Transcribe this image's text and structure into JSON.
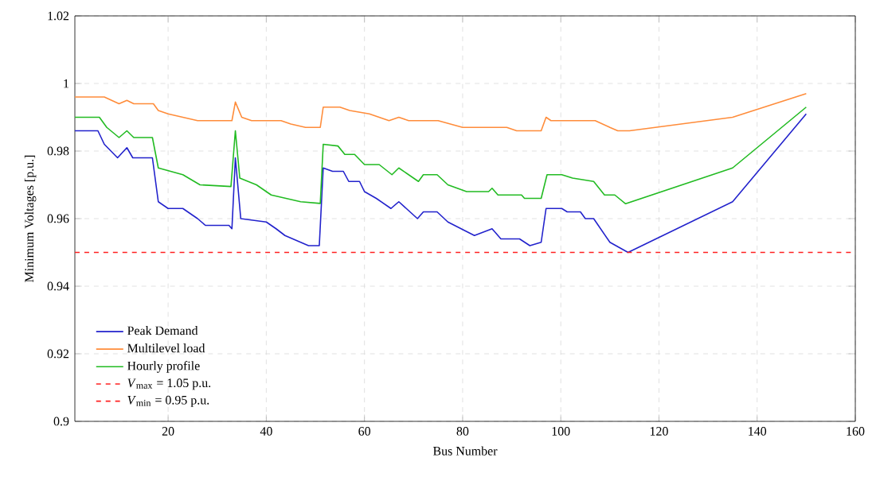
{
  "chart_data": {
    "type": "line",
    "xlabel": "Bus Number",
    "ylabel": "Minimum Voltages [p.u.]",
    "xlim": [
      1,
      160
    ],
    "xticks": [
      20,
      40,
      60,
      80,
      100,
      120,
      140,
      160
    ],
    "ylim": [
      0.9,
      1.02
    ],
    "yticks": [
      0.9,
      0.92,
      0.94,
      0.96,
      0.98,
      1,
      1.02
    ],
    "grid": true,
    "legend": "bottom left",
    "marker": "none",
    "line_style": "solid",
    "series": [
      {
        "name": "Peak Demand",
        "color": "#2222cc",
        "x": [
          1,
          5.7,
          7,
          9.7,
          11.6,
          12.8,
          16.8,
          18,
          20,
          23,
          26,
          27.6,
          32.4,
          33,
          33.7,
          34.8,
          40,
          42,
          43.8,
          47,
          48.6,
          50.8,
          51.6,
          53.5,
          55.7,
          56.8,
          59,
          60,
          62.4,
          65.4,
          67,
          70.8,
          72,
          74.8,
          77,
          79.7,
          82.4,
          86,
          87.8,
          91.6,
          93.7,
          96,
          97,
          100.2,
          101.3,
          104,
          105,
          106.7,
          110,
          113.7,
          135,
          150
        ],
        "values": [
          0.986,
          0.986,
          0.982,
          0.978,
          0.981,
          0.978,
          0.978,
          0.965,
          0.963,
          0.963,
          0.96,
          0.958,
          0.958,
          0.957,
          0.978,
          0.96,
          0.959,
          0.957,
          0.955,
          0.953,
          0.952,
          0.952,
          0.975,
          0.974,
          0.974,
          0.971,
          0.971,
          0.968,
          0.966,
          0.963,
          0.965,
          0.96,
          0.962,
          0.962,
          0.959,
          0.957,
          0.955,
          0.957,
          0.954,
          0.954,
          0.952,
          0.953,
          0.963,
          0.963,
          0.962,
          0.962,
          0.96,
          0.96,
          0.953,
          0.95,
          0.965,
          0.991
        ]
      },
      {
        "name": "Multilevel load",
        "color": "#ff8c3a",
        "x": [
          1,
          7,
          10,
          11.6,
          13,
          17,
          18,
          20,
          23,
          26,
          33,
          33.7,
          35,
          37,
          43,
          45,
          48,
          51,
          51.6,
          55,
          57,
          61,
          65,
          67,
          69,
          75,
          80,
          89,
          91,
          96,
          97,
          98,
          107,
          110,
          111.6,
          114,
          135,
          150
        ],
        "values": [
          0.996,
          0.996,
          0.994,
          0.995,
          0.994,
          0.994,
          0.992,
          0.991,
          0.99,
          0.989,
          0.989,
          0.9945,
          0.99,
          0.989,
          0.989,
          0.988,
          0.987,
          0.987,
          0.993,
          0.993,
          0.992,
          0.991,
          0.989,
          0.99,
          0.989,
          0.989,
          0.987,
          0.987,
          0.986,
          0.986,
          0.99,
          0.989,
          0.989,
          0.987,
          0.986,
          0.986,
          0.99,
          0.997
        ]
      },
      {
        "name": "Hourly profile",
        "color": "#22bb22",
        "x": [
          1,
          6,
          7.5,
          10,
          11.6,
          13,
          16.8,
          18,
          23,
          26.5,
          32.8,
          33.7,
          34.6,
          38,
          41,
          47,
          51,
          51.6,
          54.6,
          56,
          58,
          60,
          63,
          65.6,
          67,
          71,
          72,
          74.8,
          77,
          80.8,
          85.3,
          86,
          87.2,
          92,
          92.6,
          96,
          97.2,
          100.2,
          102.4,
          106.7,
          108.9,
          111,
          113.2,
          135,
          150
        ],
        "values": [
          0.99,
          0.99,
          0.987,
          0.984,
          0.986,
          0.984,
          0.984,
          0.975,
          0.973,
          0.97,
          0.9695,
          0.986,
          0.972,
          0.97,
          0.967,
          0.965,
          0.9645,
          0.982,
          0.9815,
          0.979,
          0.979,
          0.976,
          0.976,
          0.973,
          0.975,
          0.971,
          0.973,
          0.973,
          0.97,
          0.968,
          0.968,
          0.969,
          0.967,
          0.967,
          0.966,
          0.966,
          0.973,
          0.973,
          0.972,
          0.971,
          0.967,
          0.967,
          0.9644,
          0.975,
          0.993
        ]
      }
    ],
    "annotations": [
      "*V*$_{max}$ = 1.05 p.u."
    ],
    "ref_lines": [
      {
        "axis": "y",
        "value": 0.95,
        "label": "*V*$_{min}$ = 0.95 p.u.",
        "color": "#ff2020",
        "line_style": "dashed"
      }
    ]
  }
}
